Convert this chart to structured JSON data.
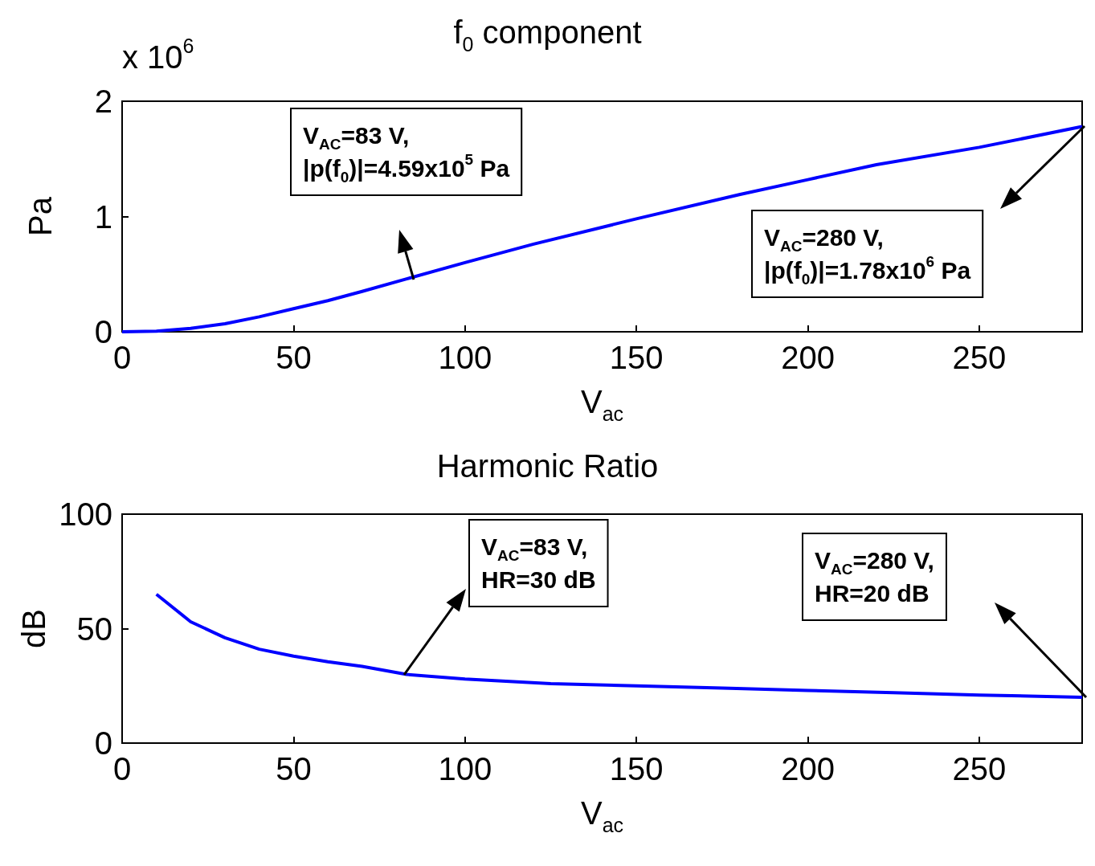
{
  "chart_data": [
    {
      "type": "line",
      "title": "f$_{0}$ component",
      "xlabel": "V$_{ac}$",
      "ylabel": "Pa",
      "x": [
        0,
        10,
        20,
        30,
        40,
        50,
        60,
        70,
        83,
        100,
        120,
        150,
        180,
        200,
        220,
        250,
        280
      ],
      "series": [
        {
          "color": "#0000ff",
          "values": [
            0,
            0.005,
            0.03,
            0.07,
            0.13,
            0.2,
            0.27,
            0.35,
            0.459,
            0.6,
            0.76,
            0.98,
            1.19,
            1.32,
            1.45,
            1.6,
            1.78
          ]
        }
      ],
      "xlim": [
        0,
        280
      ],
      "xticks": [
        0,
        50,
        100,
        150,
        200,
        250
      ],
      "ylim": [
        0,
        2
      ],
      "yticks": [
        0,
        1,
        2
      ],
      "grid": false,
      "marker": "none",
      "line_style": "solid",
      "annotations": [
        "x 10$^{6}$",
        "V$_{AC}$=83 V,\n|p(f$_{0}$)|=4.59x10$^{5}$ Pa",
        "V$_{AC}$=280 V,\n|p(f$_{0}$)|=1.78x10$^{6}$ Pa"
      ]
    },
    {
      "type": "line",
      "title": "Harmonic Ratio",
      "xlabel": "V$_{ac}$",
      "ylabel": "dB",
      "x": [
        10,
        20,
        30,
        40,
        50,
        60,
        70,
        83,
        100,
        125,
        150,
        175,
        200,
        225,
        250,
        280
      ],
      "series": [
        {
          "color": "#0000ff",
          "values": [
            65,
            53,
            46,
            41,
            38,
            35.5,
            33.5,
            30,
            28,
            26,
            25,
            24,
            23,
            22,
            21,
            20
          ]
        }
      ],
      "xlim": [
        0,
        280
      ],
      "xticks": [
        0,
        50,
        100,
        150,
        200,
        250
      ],
      "ylim": [
        0,
        100
      ],
      "yticks": [
        0,
        50,
        100
      ],
      "grid": false,
      "marker": "none",
      "line_style": "solid",
      "annotations": [
        "V$_{AC}$=83 V,\nHR=30 dB",
        "V$_{AC}$=280 V,\nHR=20 dB"
      ]
    }
  ]
}
